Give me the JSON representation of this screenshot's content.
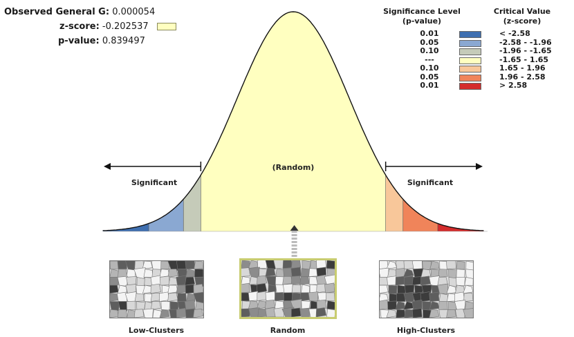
{
  "stats": {
    "observed_label": "Observed General G:",
    "observed_value": "0.000054",
    "z_label": "z-score:",
    "z_value": "-0.202537",
    "p_label": "p-value:",
    "p_value": "0.839497"
  },
  "legend": {
    "p_header": [
      "Significance Level",
      "(p-value)"
    ],
    "z_header": [
      "Critical Value",
      "(z-score)"
    ],
    "rows": [
      {
        "p": "0.01",
        "z": "< -2.58",
        "color": "#3f6fb0"
      },
      {
        "p": "0.05",
        "z": "-2.58 - -1.96",
        "color": "#8aa8d2"
      },
      {
        "p": "0.10",
        "z": "-1.96 - -1.65",
        "color": "#c5cbb9"
      },
      {
        "p": "---",
        "z": "-1.65 - 1.65",
        "color": "#ffffc0"
      },
      {
        "p": "0.10",
        "z": "1.65 - 1.96",
        "color": "#f8c79a"
      },
      {
        "p": "0.05",
        "z": "1.96 - 2.58",
        "color": "#f0845a"
      },
      {
        "p": "0.01",
        "z": "> 2.58",
        "color": "#d42c2c"
      }
    ]
  },
  "chart_data": {
    "type": "area",
    "title": "",
    "xlabel": "",
    "ylabel": "",
    "distribution": "standard normal",
    "xlim": [
      -3.4,
      3.4
    ],
    "observed_z": -0.202537,
    "critical_values": [
      -2.58,
      -1.96,
      -1.65,
      1.65,
      1.96,
      2.58
    ],
    "regions": [
      {
        "from": -3.4,
        "to": -2.58,
        "color": "#3f6fb0"
      },
      {
        "from": -2.58,
        "to": -1.96,
        "color": "#8aa8d2"
      },
      {
        "from": -1.96,
        "to": -1.65,
        "color": "#c5cbb9"
      },
      {
        "from": -1.65,
        "to": 1.65,
        "color": "#ffffc0"
      },
      {
        "from": 1.65,
        "to": 1.96,
        "color": "#f8c79a"
      },
      {
        "from": 1.96,
        "to": 2.58,
        "color": "#f0845a"
      },
      {
        "from": 2.58,
        "to": 3.4,
        "color": "#d42c2c"
      }
    ],
    "annotations": {
      "center": "(Random)",
      "left": "Significant",
      "right": "Significant"
    }
  },
  "thumbnails": [
    {
      "label": "Low-Clusters"
    },
    {
      "label": "Random"
    },
    {
      "label": "High-Clusters"
    }
  ]
}
